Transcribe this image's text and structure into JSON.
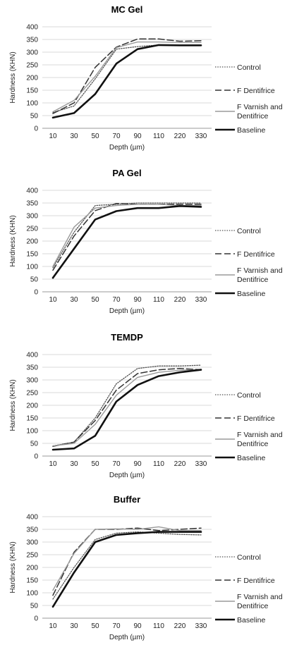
{
  "chart_data": [
    {
      "type": "line",
      "title": "MC Gel",
      "xlabel": "Depth (µm)",
      "ylabel": "Hardness (KHN)",
      "categories": [
        "10",
        "30",
        "50",
        "70",
        "90",
        "110",
        "220",
        "330"
      ],
      "ylim": [
        0,
        400
      ],
      "yticks": [
        0,
        50,
        100,
        150,
        200,
        250,
        300,
        350,
        400
      ],
      "grid": true,
      "legend": "right",
      "series": [
        {
          "name": "Control",
          "style": "dotted",
          "values": [
            62,
            88,
            195,
            312,
            322,
            328,
            328,
            327
          ]
        },
        {
          "name": "F Dentifrice",
          "style": "dashed",
          "values": [
            58,
            100,
            240,
            320,
            352,
            352,
            343,
            345
          ]
        },
        {
          "name": "F Varnish and Dentifrice",
          "style": "gray",
          "values": [
            65,
            110,
            205,
            318,
            340,
            340,
            338,
            338
          ]
        },
        {
          "name": "Baseline",
          "style": "thick",
          "values": [
            42,
            60,
            135,
            255,
            312,
            328,
            327,
            327
          ]
        }
      ]
    },
    {
      "type": "line",
      "title": "PA Gel",
      "xlabel": "Depth (µm)",
      "ylabel": "Hardness (KHN)",
      "categories": [
        "10",
        "30",
        "50",
        "70",
        "90",
        "110",
        "220",
        "330"
      ],
      "ylim": [
        0,
        400
      ],
      "yticks": [
        0,
        50,
        100,
        150,
        200,
        250,
        300,
        350,
        400
      ],
      "grid": true,
      "legend": "right",
      "series": [
        {
          "name": "Control",
          "style": "dotted",
          "values": [
            95,
            235,
            340,
            345,
            350,
            350,
            350,
            350
          ]
        },
        {
          "name": "F Dentifrice",
          "style": "dashed",
          "values": [
            85,
            220,
            320,
            348,
            345,
            345,
            345,
            345
          ]
        },
        {
          "name": "F Varnish and Dentifrice",
          "style": "gray",
          "values": [
            100,
            255,
            330,
            340,
            345,
            345,
            340,
            340
          ]
        },
        {
          "name": "Baseline",
          "style": "thick",
          "values": [
            55,
            170,
            285,
            318,
            330,
            330,
            338,
            335
          ]
        }
      ]
    },
    {
      "type": "line",
      "title": "TEMDP",
      "xlabel": "Depth (µm)",
      "ylabel": "Hardness (KHN)",
      "categories": [
        "10",
        "30",
        "50",
        "70",
        "90",
        "110",
        "220",
        "330"
      ],
      "ylim": [
        0,
        400
      ],
      "yticks": [
        0,
        50,
        100,
        150,
        200,
        250,
        300,
        350,
        400
      ],
      "grid": true,
      "legend": "right",
      "series": [
        {
          "name": "Control",
          "style": "dotted",
          "values": [
            40,
            55,
            150,
            285,
            345,
            355,
            355,
            358
          ]
        },
        {
          "name": "F Dentifrice",
          "style": "dashed",
          "values": [
            38,
            55,
            140,
            260,
            325,
            340,
            345,
            340
          ]
        },
        {
          "name": "F Varnish and Dentifrice",
          "style": "gray",
          "values": [
            40,
            50,
            125,
            240,
            310,
            330,
            338,
            340
          ]
        },
        {
          "name": "Baseline",
          "style": "thick",
          "values": [
            25,
            30,
            80,
            215,
            280,
            315,
            330,
            340
          ]
        }
      ]
    },
    {
      "type": "line",
      "title": "Buffer",
      "xlabel": "Depth (µm)",
      "ylabel": "Hardness (KHN)",
      "categories": [
        "10",
        "30",
        "50",
        "70",
        "90",
        "110",
        "220",
        "330"
      ],
      "ylim": [
        0,
        400
      ],
      "yticks": [
        0,
        50,
        100,
        150,
        200,
        250,
        300,
        350,
        400
      ],
      "grid": true,
      "legend": "right",
      "series": [
        {
          "name": "Control",
          "style": "dotted",
          "values": [
            75,
            200,
            310,
            335,
            340,
            335,
            330,
            328
          ]
        },
        {
          "name": "F Dentifrice",
          "style": "dashed",
          "values": [
            90,
            260,
            350,
            350,
            355,
            345,
            350,
            355
          ]
        },
        {
          "name": "F Varnish and Dentifrice",
          "style": "gray",
          "values": [
            110,
            255,
            350,
            352,
            350,
            360,
            345,
            345
          ]
        },
        {
          "name": "Baseline",
          "style": "thick",
          "values": [
            45,
            180,
            300,
            328,
            335,
            340,
            340,
            340
          ]
        }
      ]
    }
  ]
}
